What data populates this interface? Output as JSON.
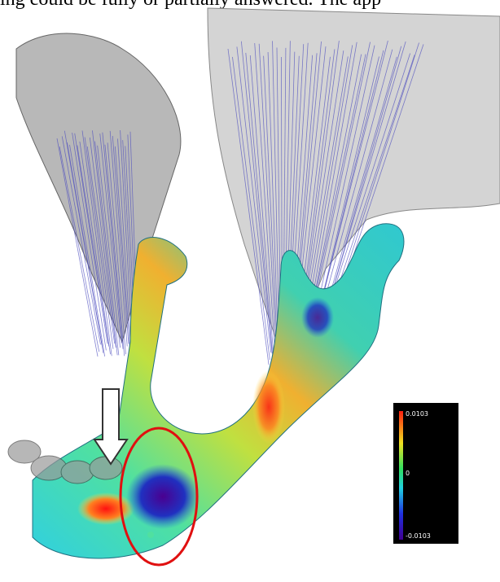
{
  "caption_fragment": "ing could be fully or partially answered. The app",
  "colorbar": {
    "max_label": "0.0103",
    "mid_label": "0",
    "min_label": "-0.0103"
  }
}
